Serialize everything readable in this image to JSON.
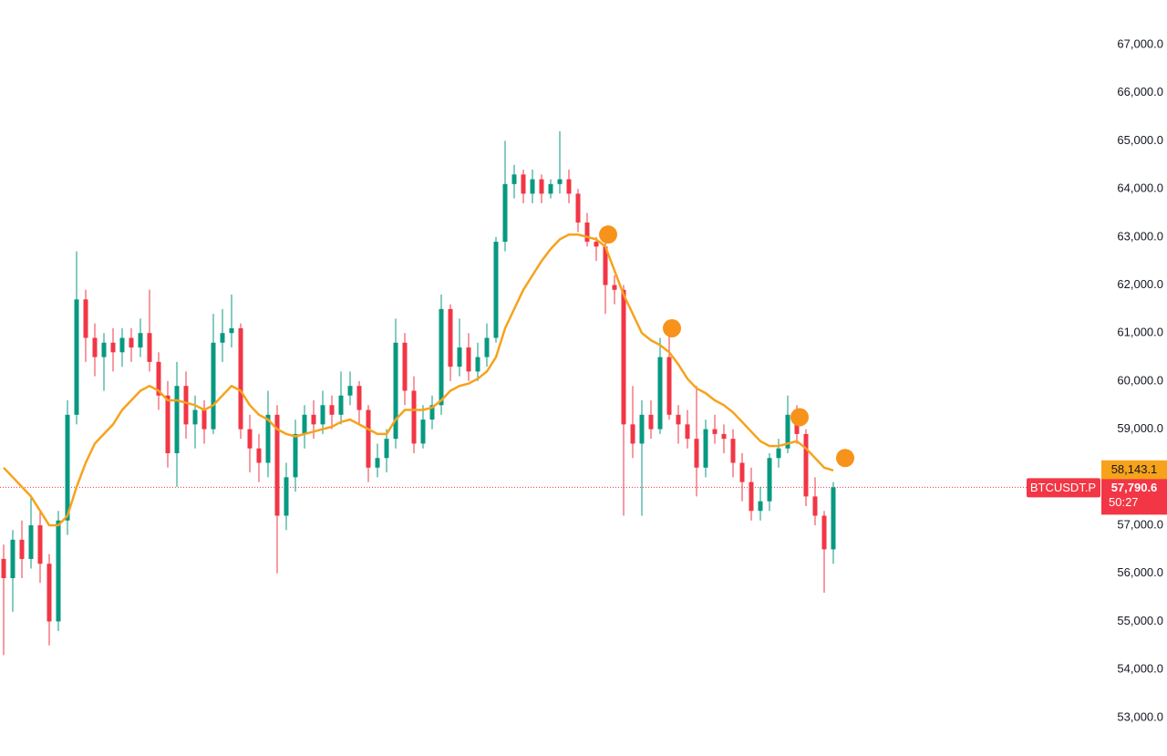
{
  "chart_data": {
    "type": "candlestick",
    "symbol": "BTCUSDT.P",
    "countdown": "50:27",
    "ylim": [
      52200,
      67930
    ],
    "yticks": [
      {
        "value": 53000,
        "label": "53,000.0"
      },
      {
        "value": 54000,
        "label": "54,000.0"
      },
      {
        "value": 55000,
        "label": "55,000.0"
      },
      {
        "value": 56000,
        "label": "56,000.0"
      },
      {
        "value": 57000,
        "label": "57,000.0"
      },
      {
        "value": 58000,
        "label": "58,000.0"
      },
      {
        "value": 59000,
        "label": "59,000.0"
      },
      {
        "value": 60000,
        "label": "60,000.0"
      },
      {
        "value": 61000,
        "label": "61,000.0"
      },
      {
        "value": 62000,
        "label": "62,000.0"
      },
      {
        "value": 63000,
        "label": "63,000.0"
      },
      {
        "value": 64000,
        "label": "64,000.0"
      },
      {
        "value": 65000,
        "label": "65,000.0"
      },
      {
        "value": 66000,
        "label": "66,000.0"
      },
      {
        "value": 67000,
        "label": "67,000.0"
      }
    ],
    "hidden_ticks": [
      58000
    ],
    "up_color": "#089981",
    "down_color": "#f23645",
    "candles": [
      [
        56300,
        56600,
        54300,
        55900
      ],
      [
        55900,
        56900,
        55200,
        56700
      ],
      [
        56700,
        57100,
        55900,
        56300
      ],
      [
        56300,
        57600,
        56100,
        57000
      ],
      [
        57000,
        57300,
        55800,
        56200
      ],
      [
        56200,
        56400,
        54500,
        55000
      ],
      [
        55000,
        57300,
        54800,
        57100
      ],
      [
        57100,
        59600,
        56800,
        59300
      ],
      [
        59300,
        62700,
        59100,
        61700
      ],
      [
        61700,
        61900,
        60400,
        60900
      ],
      [
        60900,
        61200,
        60100,
        60500
      ],
      [
        60500,
        61000,
        59800,
        60800
      ],
      [
        60800,
        61100,
        60200,
        60600
      ],
      [
        60600,
        61100,
        60300,
        60900
      ],
      [
        60900,
        61100,
        60400,
        60700
      ],
      [
        60700,
        61300,
        60500,
        61000
      ],
      [
        61000,
        61900,
        60200,
        60400
      ],
      [
        60400,
        60600,
        59400,
        59700
      ],
      [
        59700,
        60000,
        58200,
        58500
      ],
      [
        58500,
        60400,
        57800,
        59900
      ],
      [
        59900,
        60200,
        58800,
        59100
      ],
      [
        59100,
        59700,
        58600,
        59400
      ],
      [
        59400,
        59600,
        58700,
        59000
      ],
      [
        59000,
        61400,
        58900,
        60800
      ],
      [
        60800,
        61500,
        60400,
        61000
      ],
      [
        61000,
        61800,
        60700,
        61100
      ],
      [
        61100,
        61200,
        58800,
        59000
      ],
      [
        59000,
        59300,
        58100,
        58600
      ],
      [
        58600,
        58900,
        57900,
        58300
      ],
      [
        58300,
        59800,
        58000,
        59300
      ],
      [
        59300,
        59500,
        56000,
        57200
      ],
      [
        57200,
        58300,
        56900,
        58000
      ],
      [
        58000,
        59200,
        57700,
        58900
      ],
      [
        58900,
        59500,
        58600,
        59300
      ],
      [
        59300,
        59600,
        58800,
        59100
      ],
      [
        59100,
        59800,
        58900,
        59500
      ],
      [
        59500,
        59700,
        59000,
        59300
      ],
      [
        59300,
        60200,
        59100,
        59700
      ],
      [
        59700,
        60200,
        59500,
        59900
      ],
      [
        59900,
        60000,
        59100,
        59400
      ],
      [
        59400,
        59500,
        57900,
        58200
      ],
      [
        58200,
        58700,
        58000,
        58400
      ],
      [
        58400,
        59000,
        58100,
        58800
      ],
      [
        58800,
        61300,
        58600,
        60800
      ],
      [
        60800,
        61000,
        59500,
        59800
      ],
      [
        59800,
        60100,
        58500,
        58700
      ],
      [
        58700,
        59500,
        58600,
        59200
      ],
      [
        59200,
        59700,
        59000,
        59500
      ],
      [
        59500,
        61800,
        59300,
        61500
      ],
      [
        61500,
        61600,
        60000,
        60300
      ],
      [
        60300,
        61300,
        60100,
        60700
      ],
      [
        60700,
        61000,
        60000,
        60200
      ],
      [
        60200,
        60800,
        60000,
        60500
      ],
      [
        60500,
        61200,
        60300,
        60900
      ],
      [
        60900,
        63000,
        60800,
        62900
      ],
      [
        62900,
        65000,
        62700,
        64100
      ],
      [
        64100,
        64500,
        63800,
        64300
      ],
      [
        64300,
        64400,
        63700,
        63900
      ],
      [
        63900,
        64400,
        63700,
        64200
      ],
      [
        64200,
        64300,
        63700,
        63900
      ],
      [
        63900,
        64200,
        63800,
        64100
      ],
      [
        64100,
        65200,
        63900,
        64200
      ],
      [
        64200,
        64400,
        63700,
        63900
      ],
      [
        63900,
        64000,
        63100,
        63300
      ],
      [
        63300,
        63500,
        62800,
        62900
      ],
      [
        62900,
        63000,
        62500,
        62800
      ],
      [
        62800,
        62900,
        61400,
        62000
      ],
      [
        62000,
        62200,
        61600,
        61900
      ],
      [
        61900,
        62000,
        57200,
        59100
      ],
      [
        59100,
        59900,
        58400,
        58700
      ],
      [
        58700,
        59600,
        57200,
        59300
      ],
      [
        59300,
        59600,
        58800,
        59000
      ],
      [
        59000,
        60900,
        58900,
        60500
      ],
      [
        60500,
        61100,
        59200,
        59300
      ],
      [
        59300,
        59500,
        58700,
        59100
      ],
      [
        59100,
        59400,
        58600,
        58800
      ],
      [
        58800,
        59900,
        57600,
        58200
      ],
      [
        58200,
        59200,
        58000,
        59000
      ],
      [
        59000,
        59300,
        58700,
        58900
      ],
      [
        58900,
        59100,
        58500,
        58800
      ],
      [
        58800,
        59000,
        58000,
        58300
      ],
      [
        58300,
        58500,
        57500,
        57900
      ],
      [
        57900,
        58200,
        57100,
        57300
      ],
      [
        57300,
        57800,
        57100,
        57500
      ],
      [
        57500,
        58500,
        57300,
        58400
      ],
      [
        58400,
        58800,
        58200,
        58600
      ],
      [
        58600,
        59700,
        58500,
        59300
      ],
      [
        59300,
        59500,
        58700,
        58900
      ],
      [
        58900,
        59000,
        57400,
        57600
      ],
      [
        57600,
        58000,
        57000,
        57200
      ],
      [
        57200,
        57300,
        55600,
        56500
      ],
      [
        56500,
        57900,
        56200,
        57790.6
      ]
    ],
    "ma": {
      "color": "#f7a21b",
      "values": [
        58200,
        58000,
        57800,
        57600,
        57300,
        57000,
        57000,
        57200,
        57800,
        58300,
        58700,
        58900,
        59100,
        59400,
        59600,
        59800,
        59900,
        59800,
        59600,
        59600,
        59550,
        59500,
        59400,
        59500,
        59700,
        59900,
        59800,
        59500,
        59300,
        59200,
        59000,
        58900,
        58850,
        58900,
        58950,
        59000,
        59050,
        59150,
        59200,
        59100,
        59000,
        58900,
        58900,
        59200,
        59400,
        59400,
        59400,
        59450,
        59600,
        59800,
        59900,
        59950,
        60050,
        60200,
        60500,
        61100,
        61500,
        61900,
        62200,
        62500,
        62750,
        62950,
        63050,
        63050,
        63000,
        62950,
        62800,
        62300,
        61800,
        61400,
        61000,
        60850,
        60750,
        60600,
        60350,
        60050,
        59850,
        59750,
        59600,
        59500,
        59350,
        59150,
        58950,
        58750,
        58650,
        58650,
        58700,
        58750,
        58600,
        58400,
        58200,
        58143.1
      ],
      "last_label": "58,143.1"
    },
    "signals": {
      "color": "#f7931a",
      "index": [
        66,
        73,
        87,
        92
      ],
      "price": [
        63050,
        61100,
        59250,
        58400
      ]
    },
    "price_tag": {
      "value": 57790.6,
      "label": "57,790.6",
      "color": "#f23645"
    }
  }
}
